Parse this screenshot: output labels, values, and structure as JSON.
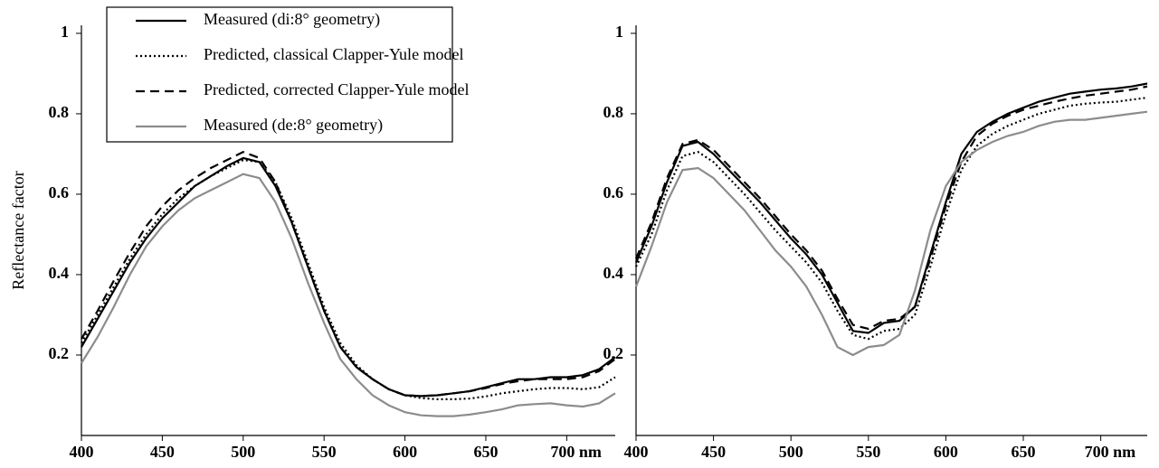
{
  "chart_data": [
    {
      "type": "line",
      "y_label": "Reflectance factor",
      "legend": "top-left",
      "x": [
        400,
        410,
        420,
        430,
        440,
        450,
        460,
        470,
        480,
        490,
        500,
        510,
        520,
        530,
        540,
        550,
        560,
        570,
        580,
        590,
        600,
        610,
        620,
        630,
        640,
        650,
        660,
        670,
        680,
        690,
        700,
        710,
        720,
        730
      ],
      "xlim": [
        400,
        730
      ],
      "ylim": [
        0,
        1.02
      ],
      "xticks": [
        400,
        450,
        500,
        550,
        600,
        650,
        {
          "value": 700,
          "label": "700 nm"
        }
      ],
      "yticks": [
        0.2,
        0.4,
        0.6,
        0.8,
        1
      ],
      "series": [
        {
          "name": "Measured (di:8° geometry)",
          "color": "#000000",
          "line_style": "solid",
          "values": [
            0.22,
            0.29,
            0.36,
            0.43,
            0.49,
            0.54,
            0.58,
            0.62,
            0.645,
            0.67,
            0.69,
            0.68,
            0.62,
            0.53,
            0.42,
            0.31,
            0.22,
            0.17,
            0.14,
            0.115,
            0.1,
            0.098,
            0.1,
            0.105,
            0.11,
            0.12,
            0.13,
            0.14,
            0.14,
            0.145,
            0.145,
            0.15,
            0.165,
            0.195
          ]
        },
        {
          "name": "Predicted, classical Clapper-Yule model",
          "color": "#000000",
          "line_style": "dotted",
          "values": [
            0.23,
            0.3,
            0.37,
            0.44,
            0.5,
            0.55,
            0.59,
            0.62,
            0.645,
            0.665,
            0.685,
            0.68,
            0.63,
            0.54,
            0.43,
            0.32,
            0.23,
            0.175,
            0.14,
            0.115,
            0.1,
            0.093,
            0.09,
            0.09,
            0.092,
            0.097,
            0.105,
            0.11,
            0.115,
            0.118,
            0.118,
            0.115,
            0.12,
            0.145
          ]
        },
        {
          "name": "Predicted, corrected Clapper-Yule model",
          "color": "#000000",
          "line_style": "dashed",
          "values": [
            0.24,
            0.31,
            0.385,
            0.455,
            0.52,
            0.57,
            0.61,
            0.64,
            0.665,
            0.685,
            0.705,
            0.69,
            0.63,
            0.53,
            0.42,
            0.31,
            0.22,
            0.17,
            0.14,
            0.115,
            0.1,
            0.098,
            0.1,
            0.105,
            0.11,
            0.118,
            0.128,
            0.135,
            0.14,
            0.14,
            0.14,
            0.145,
            0.16,
            0.19
          ]
        },
        {
          "name": "Measured (de:8° geometry)",
          "color": "#8c8c8c",
          "line_style": "solid",
          "values": [
            0.18,
            0.245,
            0.32,
            0.4,
            0.47,
            0.52,
            0.56,
            0.59,
            0.61,
            0.63,
            0.65,
            0.64,
            0.58,
            0.49,
            0.38,
            0.28,
            0.19,
            0.14,
            0.1,
            0.075,
            0.058,
            0.05,
            0.048,
            0.048,
            0.052,
            0.058,
            0.065,
            0.075,
            0.078,
            0.08,
            0.075,
            0.072,
            0.08,
            0.105
          ]
        }
      ]
    },
    {
      "type": "line",
      "x": [
        400,
        410,
        420,
        430,
        440,
        450,
        460,
        470,
        480,
        490,
        500,
        510,
        520,
        530,
        540,
        550,
        560,
        570,
        580,
        590,
        600,
        610,
        620,
        630,
        640,
        650,
        660,
        670,
        680,
        690,
        700,
        710,
        720,
        730
      ],
      "xlim": [
        400,
        730
      ],
      "ylim": [
        0,
        1.02
      ],
      "xticks": [
        400,
        450,
        500,
        550,
        600,
        650,
        {
          "value": 700,
          "label": "700 nm"
        }
      ],
      "yticks": [
        0.2,
        0.4,
        0.6,
        0.8,
        1
      ],
      "series": [
        {
          "color": "#000000",
          "line_style": "solid",
          "values": [
            0.43,
            0.52,
            0.63,
            0.72,
            0.73,
            0.7,
            0.66,
            0.62,
            0.58,
            0.535,
            0.49,
            0.45,
            0.4,
            0.33,
            0.26,
            0.255,
            0.28,
            0.285,
            0.32,
            0.45,
            0.58,
            0.7,
            0.755,
            0.78,
            0.8,
            0.815,
            0.83,
            0.84,
            0.85,
            0.855,
            0.86,
            0.863,
            0.868,
            0.875
          ]
        },
        {
          "color": "#000000",
          "line_style": "dotted",
          "values": [
            0.42,
            0.5,
            0.61,
            0.695,
            0.705,
            0.68,
            0.64,
            0.6,
            0.555,
            0.51,
            0.47,
            0.43,
            0.38,
            0.31,
            0.25,
            0.24,
            0.26,
            0.265,
            0.3,
            0.42,
            0.55,
            0.66,
            0.72,
            0.75,
            0.77,
            0.785,
            0.8,
            0.81,
            0.82,
            0.825,
            0.828,
            0.83,
            0.835,
            0.84
          ]
        },
        {
          "color": "#000000",
          "line_style": "dashed",
          "values": [
            0.44,
            0.53,
            0.64,
            0.725,
            0.735,
            0.71,
            0.67,
            0.63,
            0.59,
            0.545,
            0.5,
            0.46,
            0.41,
            0.34,
            0.275,
            0.265,
            0.285,
            0.29,
            0.32,
            0.44,
            0.57,
            0.68,
            0.745,
            0.775,
            0.795,
            0.81,
            0.82,
            0.83,
            0.838,
            0.845,
            0.85,
            0.855,
            0.86,
            0.868
          ]
        },
        {
          "color": "#8c8c8c",
          "line_style": "solid",
          "values": [
            0.37,
            0.47,
            0.58,
            0.66,
            0.665,
            0.64,
            0.6,
            0.56,
            0.51,
            0.46,
            0.42,
            0.37,
            0.3,
            0.22,
            0.2,
            0.22,
            0.225,
            0.25,
            0.36,
            0.51,
            0.62,
            0.68,
            0.71,
            0.73,
            0.745,
            0.755,
            0.77,
            0.78,
            0.785,
            0.785,
            0.79,
            0.795,
            0.8,
            0.805
          ]
        }
      ]
    }
  ]
}
